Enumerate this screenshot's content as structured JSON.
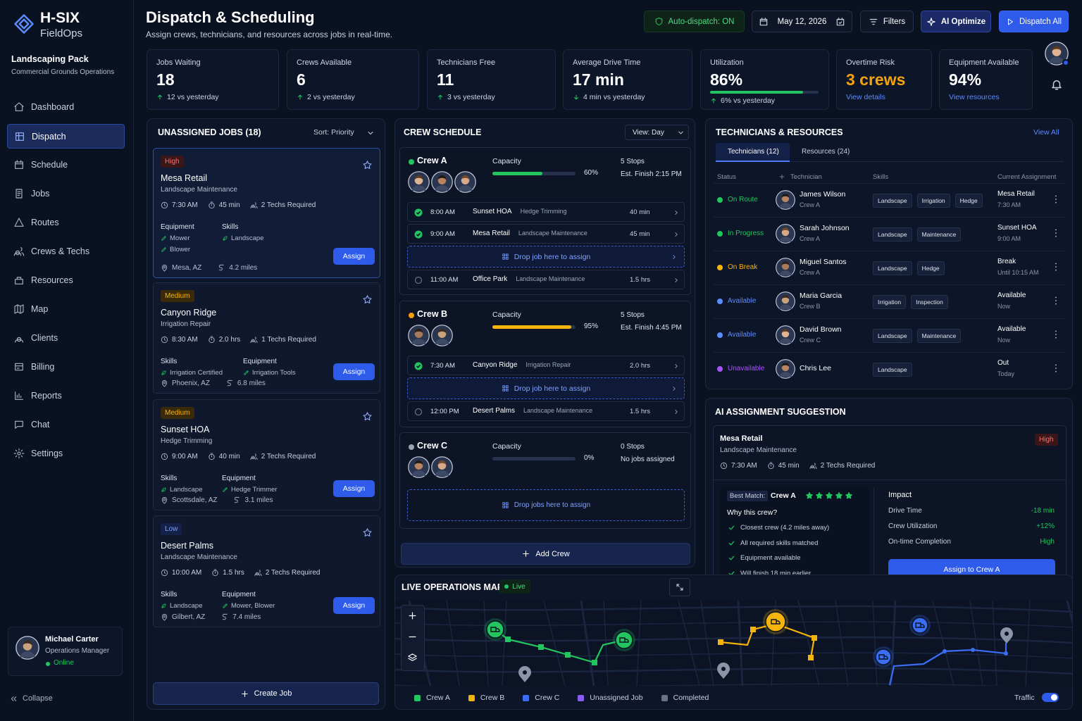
{
  "sidebar": {
    "brand": {
      "name": "H-SIX",
      "product": "FieldOps"
    },
    "pack": {
      "title": "Landscaping Pack",
      "subtitle": "Commercial Grounds Operations"
    },
    "nav": [
      "Dashboard",
      "Dispatch",
      "Schedule",
      "Jobs",
      "Routes",
      "Crews & Techs",
      "Resources",
      "Map",
      "Clients",
      "Billing",
      "Reports",
      "Chat",
      "Settings"
    ],
    "user": {
      "name": "Michael Carter",
      "role": "Operations Manager",
      "status": "Online"
    },
    "collapse": "Collapse"
  },
  "header": {
    "title": "Dispatch & Scheduling",
    "subtitle": "Assign crews, technicians, and resources across jobs in real-time.",
    "auto_dispatch": "Auto-dispatch: ON",
    "date": "May 12, 2026",
    "filters": "Filters",
    "ai_optimize": "AI Optimize",
    "dispatch_all": "Dispatch All"
  },
  "kpis": [
    {
      "label": "Jobs Waiting",
      "value": "18",
      "delta": "12 vs yesterday",
      "trend": "up"
    },
    {
      "label": "Crews Available",
      "value": "6",
      "delta": "2 vs yesterday",
      "trend": "up"
    },
    {
      "label": "Technicians Free",
      "value": "11",
      "delta": "3 vs yesterday",
      "trend": "up"
    },
    {
      "label": "Average Drive Time",
      "value": "17 min",
      "delta": "4 min vs yesterday",
      "trend": "down"
    },
    {
      "label": "Utilization",
      "value": "86%",
      "delta": "6% vs yesterday",
      "trend": "up"
    },
    {
      "label": "Overtime Risk",
      "value": "3 crews",
      "link": "View details"
    },
    {
      "label": "Equipment Available",
      "value": "94%",
      "link": "View resources"
    }
  ],
  "unassigned": {
    "title": "UNASSIGNED JOBS (18)",
    "sort": "Sort: Priority",
    "assign": "Assign",
    "create": "Create Job",
    "jobs": [
      {
        "priority": "High",
        "name": "Mesa Retail",
        "service": "Landscape Maintenance",
        "time": "7:30 AM",
        "duration": "45 min",
        "techs": "2 Techs Required",
        "groups": [
          {
            "label": "Equipment",
            "items": [
              "Mower",
              "Blower"
            ]
          },
          {
            "label": "Skills",
            "items": [
              "Landscape"
            ]
          }
        ],
        "location": "Mesa, AZ",
        "distance": "4.2 miles"
      },
      {
        "priority": "Medium",
        "name": "Canyon Ridge",
        "service": "Irrigation Repair",
        "time": "8:30 AM",
        "duration": "2.0 hrs",
        "techs": "1 Techs Required",
        "groups": [
          {
            "label": "Skills",
            "items": [
              "Irrigation Certified"
            ]
          },
          {
            "label": "Equipment",
            "items": [
              "Irrigation Tools"
            ]
          }
        ],
        "location": "Phoenix, AZ",
        "distance": "6.8 miles"
      },
      {
        "priority": "Medium",
        "name": "Sunset HOA",
        "service": "Hedge Trimming",
        "time": "9:00 AM",
        "duration": "40 min",
        "techs": "2 Techs Required",
        "groups": [
          {
            "label": "Skills",
            "items": [
              "Landscape"
            ]
          },
          {
            "label": "Equipment",
            "items": [
              "Hedge Trimmer"
            ]
          }
        ],
        "location": "Scottsdale, AZ",
        "distance": "3.1 miles"
      },
      {
        "priority": "Low",
        "name": "Desert Palms",
        "service": "Landscape Maintenance",
        "time": "10:00 AM",
        "duration": "1.5 hrs",
        "techs": "2 Techs Required",
        "groups": [
          {
            "label": "Skills",
            "items": [
              "Landscape"
            ]
          },
          {
            "label": "Equipment",
            "items": [
              "Mower, Blower"
            ]
          }
        ],
        "location": "Gilbert, AZ",
        "distance": "7.4 miles"
      }
    ]
  },
  "crew_schedule": {
    "title": "CREW SCHEDULE",
    "view": "View: Day",
    "capacity_label": "Capacity",
    "add_crew": "Add Crew",
    "crews": [
      {
        "name": "Crew A",
        "color": "#22c55e",
        "capacity": "60%",
        "stops": "5 Stops",
        "finish": "Est. Finish 2:15 PM",
        "bar_color": "#22c55e",
        "rows": [
          {
            "time": "8:00 AM",
            "site": "Sunset HOA",
            "service": "Hedge Trimming",
            "duration": "40 min",
            "done": true
          },
          {
            "time": "9:00 AM",
            "site": "Mesa Retail",
            "service": "Landscape Maintenance",
            "duration": "45 min",
            "done": true
          },
          {
            "drop": "Drop job here to assign"
          },
          {
            "time": "11:00 AM",
            "site": "Office Park",
            "service": "Landscape Maintenance",
            "duration": "1.5 hrs",
            "done": false
          }
        ]
      },
      {
        "name": "Crew B",
        "color": "#f59e0b",
        "capacity": "95%",
        "stops": "5 Stops",
        "finish": "Est. Finish 4:45 PM",
        "bar_color": "#f5b40b",
        "rows": [
          {
            "time": "7:30 AM",
            "site": "Canyon Ridge",
            "service": "Irrigation Repair",
            "duration": "2.0 hrs",
            "done": true
          },
          {
            "drop": "Drop job here to assign"
          },
          {
            "time": "12:00 PM",
            "site": "Desert Palms",
            "service": "Landscape Maintenance",
            "duration": "1.5 hrs",
            "done": false
          }
        ]
      },
      {
        "name": "Crew C",
        "color": "#9ca3af",
        "capacity": "0%",
        "stops": "0 Stops",
        "finish": "No jobs assigned",
        "bar_color": "#3b82f6",
        "drop_zone": "Drop jobs here to assign",
        "rows": []
      }
    ]
  },
  "technicians": {
    "title": "TECHNICIANS & RESOURCES",
    "view_all": "View All",
    "tabs": [
      "Technicians (12)",
      "Resources (24)"
    ],
    "columns": [
      "Status",
      "Technician",
      "Skills",
      "Current Assignment"
    ],
    "rows": [
      {
        "status": "On Route",
        "color": "#22c55e",
        "name": "James Wilson",
        "crew": "Crew A",
        "skills": [
          "Landscape",
          "Irrigation",
          "Hedge"
        ],
        "assignment": "Mesa Retail",
        "assignment_sub": "7:30 AM"
      },
      {
        "status": "In Progress",
        "color": "#22c55e",
        "name": "Sarah Johnson",
        "crew": "Crew A",
        "skills": [
          "Landscape",
          "Maintenance"
        ],
        "assignment": "Sunset HOA",
        "assignment_sub": "9:00 AM"
      },
      {
        "status": "On Break",
        "color": "#f5b40b",
        "name": "Miguel Santos",
        "crew": "Crew A",
        "skills": [
          "Landscape",
          "Hedge"
        ],
        "assignment": "Break",
        "assignment_sub": "Until 10:15 AM"
      },
      {
        "status": "Available",
        "color": "#5b8cff",
        "name": "Maria Garcia",
        "crew": "Crew B",
        "skills": [
          "Irrigation",
          "Inspection"
        ],
        "assignment": "Available",
        "assignment_sub": "Now"
      },
      {
        "status": "Available",
        "color": "#5b8cff",
        "name": "David Brown",
        "crew": "Crew C",
        "skills": [
          "Landscape",
          "Maintenance"
        ],
        "assignment": "Available",
        "assignment_sub": "Now"
      },
      {
        "status": "Unavailable",
        "color": "#a855f7",
        "name": "Chris Lee",
        "skills": [
          "Landscape"
        ],
        "assignment": "Out",
        "assignment_sub": "Today"
      }
    ]
  },
  "ai_suggestion": {
    "title": "AI ASSIGNMENT SUGGESTION",
    "job": {
      "name": "Mesa Retail",
      "service": "Landscape Maintenance",
      "priority": "High",
      "time": "7:30 AM",
      "duration": "45 min",
      "techs": "2 Techs Required"
    },
    "best_match_label": "Best Match:",
    "best_match": "Crew A",
    "why": "Why this crew?",
    "reasons": [
      "Closest crew (4.2 miles away)",
      "All required skills matched",
      "Equipment available",
      "Will finish 18 min earlier"
    ],
    "impact_title": "Impact",
    "impact": [
      {
        "label": "Drive Time",
        "value": "-18 min"
      },
      {
        "label": "Crew Utilization",
        "value": "+12%"
      },
      {
        "label": "On-time Completion",
        "value": "High"
      }
    ],
    "button": "Assign to Crew A"
  },
  "map": {
    "title": "LIVE OPERATIONS MAP",
    "live": "Live",
    "legend": [
      {
        "name": "Crew A",
        "color": "#22c55e"
      },
      {
        "name": "Crew B",
        "color": "#f5b40b"
      },
      {
        "name": "Crew C",
        "color": "#3b6ef5"
      },
      {
        "name": "Unassigned Job",
        "color": "#8b5cf6"
      },
      {
        "name": "Completed",
        "color": "#6b7280"
      }
    ],
    "traffic": "Traffic"
  }
}
